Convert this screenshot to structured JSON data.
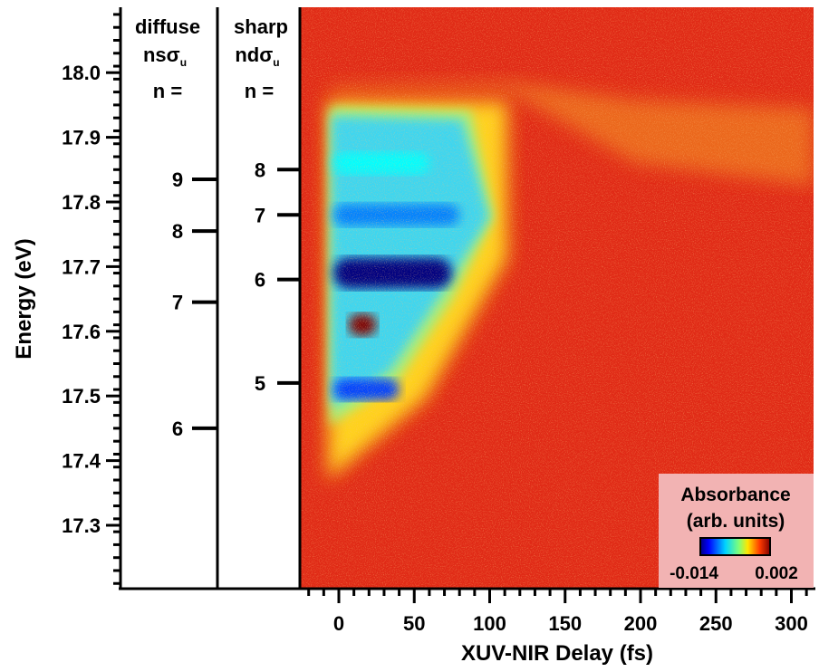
{
  "chart_data": {
    "type": "heatmap",
    "xlabel": "XUV-NIR Delay (fs)",
    "ylabel": "Energy (eV)",
    "xlim": [
      -25,
      315
    ],
    "ylim": [
      17.21,
      18.09
    ],
    "x_ticks": [
      0,
      50,
      100,
      150,
      200,
      250,
      300
    ],
    "x_tick_labels": [
      "0",
      "50",
      "100",
      "150",
      "200",
      "250",
      "300"
    ],
    "y_ticks": [
      17.3,
      17.4,
      17.5,
      17.6,
      17.7,
      17.8,
      17.9,
      18.0
    ],
    "y_tick_labels": [
      "17.3",
      "17.4",
      "17.5",
      "17.6",
      "17.7",
      "17.8",
      "17.9",
      "18.0"
    ],
    "colorbar": {
      "title_line1": "Absorbance",
      "title_line2": "(arb. units)",
      "min": -0.014,
      "max": 0.002,
      "min_label": "-0.014",
      "max_label": "0.002",
      "colormap": "jet",
      "background_color": "#f2b3b3"
    },
    "background_color": "#e02a16",
    "features": [
      {
        "energy": 17.69,
        "delay_start": 0,
        "delay_end": 75,
        "value": -0.014
      },
      {
        "energy": 17.78,
        "delay_start": 0,
        "delay_end": 80,
        "value": -0.01
      },
      {
        "energy": 17.86,
        "delay_start": 0,
        "delay_end": 60,
        "value": -0.008
      },
      {
        "energy": 17.51,
        "delay_start": 0,
        "delay_end": 40,
        "value": -0.011
      },
      {
        "energy": 17.61,
        "delay_start": 10,
        "delay_end": 25,
        "value": 0.002
      }
    ]
  },
  "diffuse_panel": {
    "title_line1": "diffuse",
    "title_line2": "nsσ",
    "title_sub": "u",
    "title_line3": "n =",
    "levels": [
      {
        "n": "9",
        "energy": 17.835
      },
      {
        "n": "8",
        "energy": 17.755
      },
      {
        "n": "7",
        "energy": 17.645
      },
      {
        "n": "6",
        "energy": 17.45
      }
    ]
  },
  "sharp_panel": {
    "title_line1": "sharp",
    "title_line2": "ndσ",
    "title_sub": "u",
    "title_line3": "n =",
    "levels": [
      {
        "n": "8",
        "energy": 17.85
      },
      {
        "n": "7",
        "energy": 17.78
      },
      {
        "n": "6",
        "energy": 17.68
      },
      {
        "n": "5",
        "energy": 17.52
      }
    ]
  }
}
